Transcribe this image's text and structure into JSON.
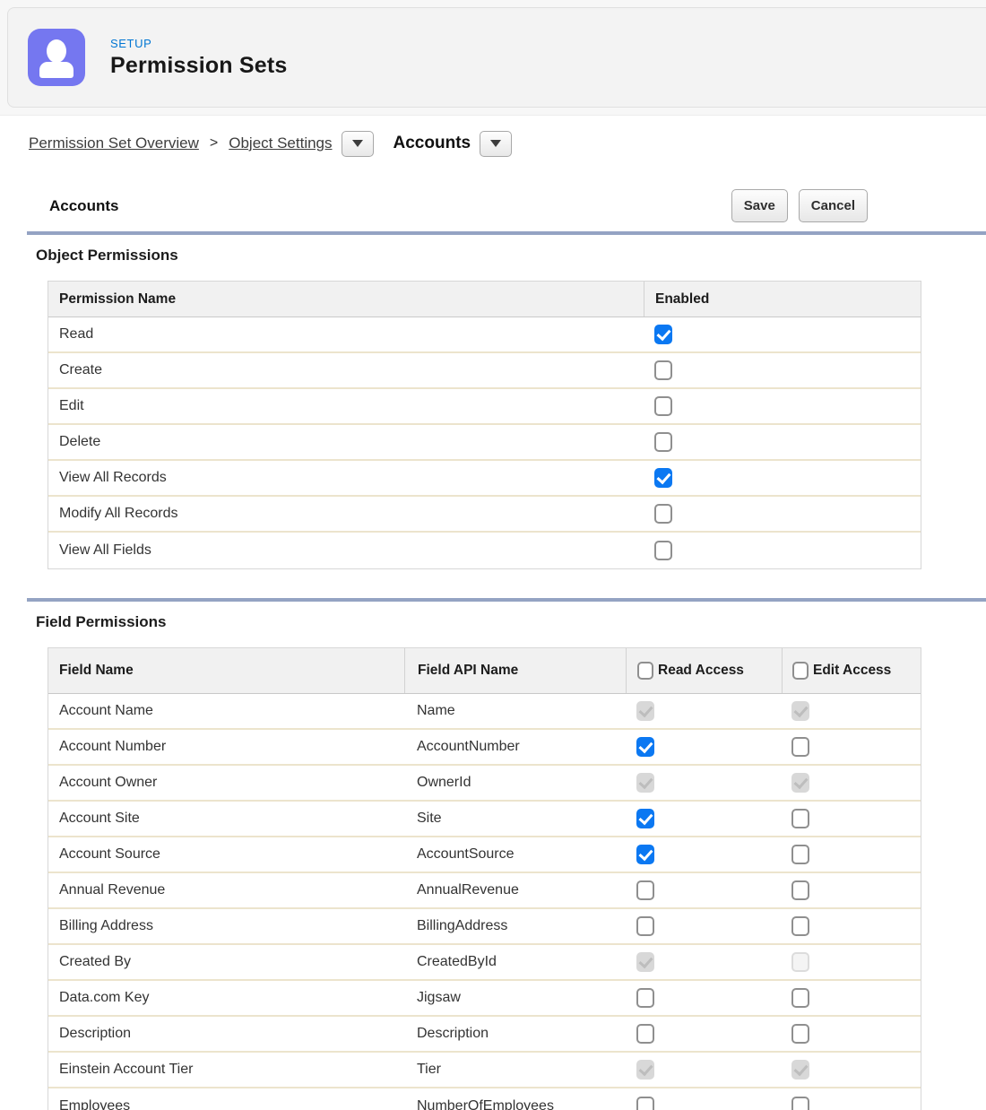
{
  "colors": {
    "accent_blue": "#0176d3",
    "avatar_purple": "#7577f0",
    "checkbox_blue": "#0b78f2",
    "divider_blue_gray": "#94a3c3"
  },
  "header": {
    "eyebrow": "SETUP",
    "title": "Permission Sets"
  },
  "breadcrumb": {
    "link1": "Permission Set Overview",
    "separator": ">",
    "link2": "Object Settings",
    "current": "Accounts"
  },
  "toolbar": {
    "title": "Accounts",
    "save_label": "Save",
    "cancel_label": "Cancel"
  },
  "object_permissions": {
    "heading": "Object Permissions",
    "columns": [
      "Permission Name",
      "Enabled"
    ],
    "rows": [
      {
        "name": "Read",
        "enabled": true
      },
      {
        "name": "Create",
        "enabled": false
      },
      {
        "name": "Edit",
        "enabled": false
      },
      {
        "name": "Delete",
        "enabled": false
      },
      {
        "name": "View All Records",
        "enabled": true
      },
      {
        "name": "Modify All Records",
        "enabled": false
      },
      {
        "name": "View All Fields",
        "enabled": false
      }
    ]
  },
  "field_permissions": {
    "heading": "Field Permissions",
    "columns": [
      "Field Name",
      "Field API Name",
      "Read Access",
      "Edit Access"
    ],
    "rows": [
      {
        "field": "Account Name",
        "api": "Name",
        "read": "disabled-checked",
        "edit": "disabled-checked"
      },
      {
        "field": "Account Number",
        "api": "AccountNumber",
        "read": "checked",
        "edit": "unchecked"
      },
      {
        "field": "Account Owner",
        "api": "OwnerId",
        "read": "disabled-checked",
        "edit": "disabled-checked"
      },
      {
        "field": "Account Site",
        "api": "Site",
        "read": "checked",
        "edit": "unchecked"
      },
      {
        "field": "Account Source",
        "api": "AccountSource",
        "read": "checked",
        "edit": "unchecked"
      },
      {
        "field": "Annual Revenue",
        "api": "AnnualRevenue",
        "read": "unchecked",
        "edit": "unchecked"
      },
      {
        "field": "Billing Address",
        "api": "BillingAddress",
        "read": "unchecked",
        "edit": "unchecked"
      },
      {
        "field": "Created By",
        "api": "CreatedById",
        "read": "disabled-checked",
        "edit": "disabled-unchecked"
      },
      {
        "field": "Data.com Key",
        "api": "Jigsaw",
        "read": "unchecked",
        "edit": "unchecked"
      },
      {
        "field": "Description",
        "api": "Description",
        "read": "unchecked",
        "edit": "unchecked"
      },
      {
        "field": "Einstein Account Tier",
        "api": "Tier",
        "read": "disabled-checked",
        "edit": "disabled-checked"
      },
      {
        "field": "Employees",
        "api": "NumberOfEmployees",
        "read": "unchecked",
        "edit": "unchecked"
      }
    ]
  }
}
